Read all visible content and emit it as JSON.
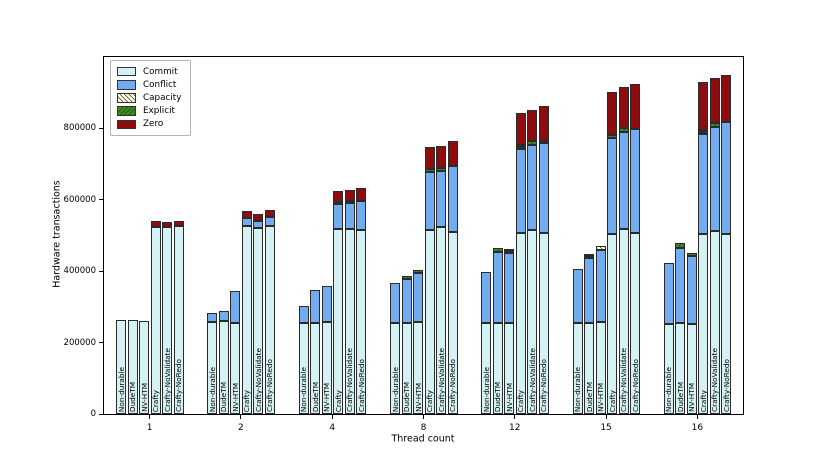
{
  "chart_data": {
    "type": "bar",
    "stacked": true,
    "title": "",
    "xlabel": "Thread count",
    "ylabel": "Hardware transactions",
    "ylim": [
      0,
      1000000
    ],
    "yticks": [
      0,
      200000,
      400000,
      600000,
      800000
    ],
    "grid": false,
    "legend_position": "upper-left",
    "segment_order": [
      "Commit",
      "Conflict",
      "Capacity",
      "Explicit",
      "Zero"
    ],
    "colors": {
      "Commit": "#d4f1f4",
      "Conflict": "#72abee",
      "Capacity": "#ffffdf",
      "Explicit": "#3f8d1f",
      "Zero": "#8d0c10"
    },
    "bar_labels": [
      "Non-durable",
      "DudeTM",
      "NV-HTM",
      "Crafty",
      "Crafty-NoValidate",
      "Crafty-NoRedo"
    ],
    "groups": [
      {
        "thread_count": "1",
        "bars": [
          {
            "label": "Non-durable",
            "segments": {
              "Commit": 262000,
              "Conflict": 0,
              "Capacity": 0,
              "Explicit": 0,
              "Zero": 0
            }
          },
          {
            "label": "DudeTM",
            "segments": {
              "Commit": 262000,
              "Conflict": 0,
              "Capacity": 0,
              "Explicit": 0,
              "Zero": 0
            }
          },
          {
            "label": "NV-HTM",
            "segments": {
              "Commit": 261000,
              "Conflict": 0,
              "Capacity": 0,
              "Explicit": 0,
              "Zero": 0
            }
          },
          {
            "label": "Crafty",
            "segments": {
              "Commit": 525000,
              "Conflict": 0,
              "Capacity": 0,
              "Explicit": 0,
              "Zero": 15000
            }
          },
          {
            "label": "Crafty-NoValidate",
            "segments": {
              "Commit": 524000,
              "Conflict": 0,
              "Capacity": 0,
              "Explicit": 0,
              "Zero": 14000
            }
          },
          {
            "label": "Crafty-NoRedo",
            "segments": {
              "Commit": 526000,
              "Conflict": 0,
              "Capacity": 0,
              "Explicit": 0,
              "Zero": 15000
            }
          }
        ]
      },
      {
        "thread_count": "2",
        "bars": [
          {
            "label": "Non-durable",
            "segments": {
              "Commit": 259000,
              "Conflict": 23000,
              "Capacity": 0,
              "Explicit": 0,
              "Zero": 0
            }
          },
          {
            "label": "DudeTM",
            "segments": {
              "Commit": 260000,
              "Conflict": 28000,
              "Capacity": 0,
              "Explicit": 0,
              "Zero": 0
            }
          },
          {
            "label": "NV-HTM",
            "segments": {
              "Commit": 255000,
              "Conflict": 90000,
              "Capacity": 0,
              "Explicit": 0,
              "Zero": 0
            }
          },
          {
            "label": "Crafty",
            "segments": {
              "Commit": 527000,
              "Conflict": 23000,
              "Capacity": 0,
              "Explicit": 0,
              "Zero": 18000
            }
          },
          {
            "label": "Crafty-NoValidate",
            "segments": {
              "Commit": 522000,
              "Conflict": 20000,
              "Capacity": 0,
              "Explicit": 0,
              "Zero": 17000
            }
          },
          {
            "label": "Crafty-NoRedo",
            "segments": {
              "Commit": 527000,
              "Conflict": 25000,
              "Capacity": 0,
              "Explicit": 0,
              "Zero": 20000
            }
          }
        ]
      },
      {
        "thread_count": "4",
        "bars": [
          {
            "label": "Non-durable",
            "segments": {
              "Commit": 254000,
              "Conflict": 48000,
              "Capacity": 0,
              "Explicit": 0,
              "Zero": 0
            }
          },
          {
            "label": "DudeTM",
            "segments": {
              "Commit": 254000,
              "Conflict": 92000,
              "Capacity": 0,
              "Explicit": 0,
              "Zero": 0
            }
          },
          {
            "label": "NV-HTM",
            "segments": {
              "Commit": 257000,
              "Conflict": 101000,
              "Capacity": 0,
              "Explicit": 0,
              "Zero": 0
            }
          },
          {
            "label": "Crafty",
            "segments": {
              "Commit": 518000,
              "Conflict": 70000,
              "Capacity": 0,
              "Explicit": 7000,
              "Zero": 30000
            }
          },
          {
            "label": "Crafty-NoValidate",
            "segments": {
              "Commit": 519000,
              "Conflict": 73000,
              "Capacity": 0,
              "Explicit": 6000,
              "Zero": 30000
            }
          },
          {
            "label": "Crafty-NoRedo",
            "segments": {
              "Commit": 515000,
              "Conflict": 83000,
              "Capacity": 0,
              "Explicit": 0,
              "Zero": 36000
            }
          }
        ]
      },
      {
        "thread_count": "8",
        "bars": [
          {
            "label": "Non-durable",
            "segments": {
              "Commit": 255000,
              "Conflict": 112000,
              "Capacity": 0,
              "Explicit": 0,
              "Zero": 0
            }
          },
          {
            "label": "DudeTM",
            "segments": {
              "Commit": 255000,
              "Conflict": 124000,
              "Capacity": 0,
              "Explicit": 8000,
              "Zero": 0
            }
          },
          {
            "label": "NV-HTM",
            "segments": {
              "Commit": 258000,
              "Conflict": 137000,
              "Capacity": 0,
              "Explicit": 8000,
              "Zero": 0
            }
          },
          {
            "label": "Crafty",
            "segments": {
              "Commit": 516000,
              "Conflict": 163000,
              "Capacity": 0,
              "Explicit": 8000,
              "Zero": 61000
            }
          },
          {
            "label": "Crafty-NoValidate",
            "segments": {
              "Commit": 523000,
              "Conflict": 157000,
              "Capacity": 0,
              "Explicit": 8000,
              "Zero": 62000
            }
          },
          {
            "label": "Crafty-NoRedo",
            "segments": {
              "Commit": 511000,
              "Conflict": 183000,
              "Capacity": 0,
              "Explicit": 0,
              "Zero": 70000
            }
          }
        ]
      },
      {
        "thread_count": "12",
        "bars": [
          {
            "label": "Non-durable",
            "segments": {
              "Commit": 255000,
              "Conflict": 143000,
              "Capacity": 0,
              "Explicit": 0,
              "Zero": 0
            }
          },
          {
            "label": "DudeTM",
            "segments": {
              "Commit": 255000,
              "Conflict": 200000,
              "Capacity": 0,
              "Explicit": 11000,
              "Zero": 0
            }
          },
          {
            "label": "NV-HTM",
            "segments": {
              "Commit": 254000,
              "Conflict": 196000,
              "Capacity": 3000,
              "Explicit": 6000,
              "Zero": 0
            }
          },
          {
            "label": "Crafty",
            "segments": {
              "Commit": 507000,
              "Conflict": 236000,
              "Capacity": 2000,
              "Explicit": 5000,
              "Zero": 89000
            }
          },
          {
            "label": "Crafty-NoValidate",
            "segments": {
              "Commit": 516000,
              "Conflict": 238000,
              "Capacity": 0,
              "Explicit": 10000,
              "Zero": 89000
            }
          },
          {
            "label": "Crafty-NoRedo",
            "segments": {
              "Commit": 506000,
              "Conflict": 252000,
              "Capacity": 0,
              "Explicit": 4000,
              "Zero": 99000
            }
          }
        ]
      },
      {
        "thread_count": "15",
        "bars": [
          {
            "label": "Non-durable",
            "segments": {
              "Commit": 255000,
              "Conflict": 150000,
              "Capacity": 0,
              "Explicit": 0,
              "Zero": 0
            }
          },
          {
            "label": "DudeTM",
            "segments": {
              "Commit": 255000,
              "Conflict": 181000,
              "Capacity": 8000,
              "Explicit": 4000,
              "Zero": 0
            }
          },
          {
            "label": "NV-HTM",
            "segments": {
              "Commit": 257000,
              "Conflict": 203000,
              "Capacity": 10000,
              "Explicit": 0,
              "Zero": 0
            }
          },
          {
            "label": "Crafty",
            "segments": {
              "Commit": 503000,
              "Conflict": 269000,
              "Capacity": 0,
              "Explicit": 10000,
              "Zero": 120000
            }
          },
          {
            "label": "Crafty-NoValidate",
            "segments": {
              "Commit": 519000,
              "Conflict": 271000,
              "Capacity": 0,
              "Explicit": 10000,
              "Zero": 116000
            }
          },
          {
            "label": "Crafty-NoRedo",
            "segments": {
              "Commit": 507000,
              "Conflict": 292000,
              "Capacity": 0,
              "Explicit": 0,
              "Zero": 126000
            }
          }
        ]
      },
      {
        "thread_count": "16",
        "bars": [
          {
            "label": "Non-durable",
            "segments": {
              "Commit": 252000,
              "Conflict": 170000,
              "Capacity": 0,
              "Explicit": 0,
              "Zero": 0
            }
          },
          {
            "label": "DudeTM",
            "segments": {
              "Commit": 255000,
              "Conflict": 210000,
              "Capacity": 0,
              "Explicit": 13000,
              "Zero": 0
            }
          },
          {
            "label": "NV-HTM",
            "segments": {
              "Commit": 252000,
              "Conflict": 190000,
              "Capacity": 0,
              "Explicit": 8000,
              "Zero": 0
            }
          },
          {
            "label": "Crafty",
            "segments": {
              "Commit": 503000,
              "Conflict": 280000,
              "Capacity": 3000,
              "Explicit": 4000,
              "Zero": 136000
            }
          },
          {
            "label": "Crafty-NoValidate",
            "segments": {
              "Commit": 514000,
              "Conflict": 290000,
              "Capacity": 0,
              "Explicit": 10000,
              "Zero": 126000
            }
          },
          {
            "label": "Crafty-NoRedo",
            "segments": {
              "Commit": 505000,
              "Conflict": 314000,
              "Capacity": 0,
              "Explicit": 0,
              "Zero": 132000
            }
          }
        ]
      }
    ]
  }
}
